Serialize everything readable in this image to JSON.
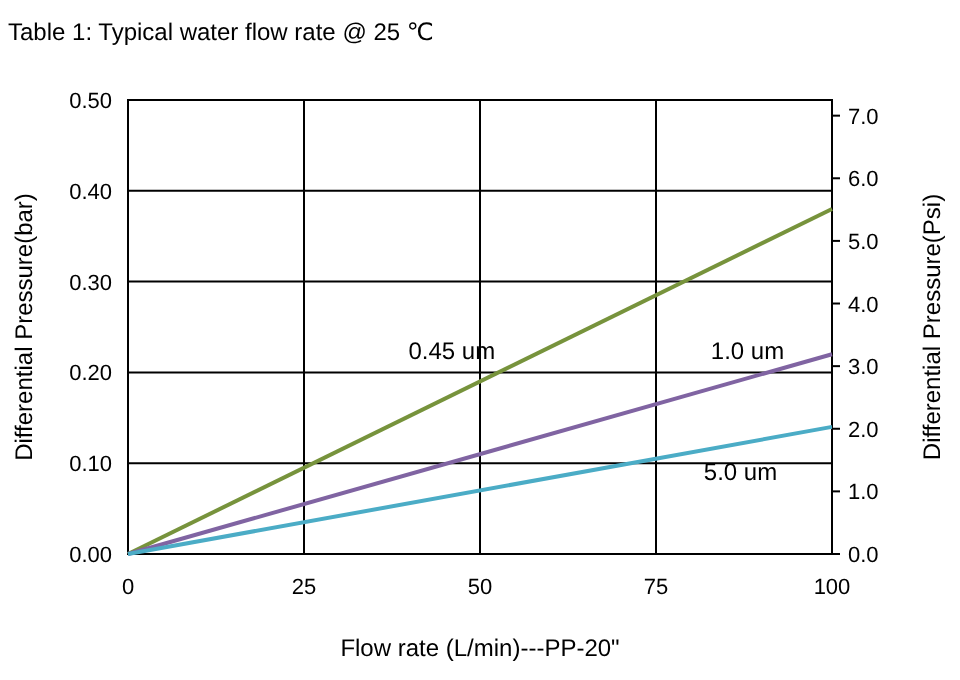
{
  "chart_data": {
    "type": "line",
    "title": "Table 1:  Typical water flow rate @ 25 ℃",
    "xlabel": "Flow rate (L/min)---PP-20\"",
    "ylabel": "Differential Pressure(bar)",
    "y2label": "Differential Pressure(Psi)",
    "x": [
      0,
      100
    ],
    "series": [
      {
        "name": "0.45 um",
        "color": "#77933c",
        "values": [
          0,
          0.38
        ]
      },
      {
        "name": "1.0 um",
        "color": "#8064a2",
        "values": [
          0,
          0.22
        ]
      },
      {
        "name": "5.0 um",
        "color": "#4bacc6",
        "values": [
          0,
          0.14
        ]
      }
    ],
    "xlim": [
      0,
      100
    ],
    "xticks": [
      0,
      25,
      50,
      75,
      100
    ],
    "ylim": [
      0,
      0.5
    ],
    "yticks": [
      {
        "value": 0,
        "label": "0.00"
      },
      {
        "value": 0.1,
        "label": "0.10"
      },
      {
        "value": 0.2,
        "label": "0.20"
      },
      {
        "value": 0.3,
        "label": "0.30"
      },
      {
        "value": 0.4,
        "label": "0.40"
      },
      {
        "value": 0.5,
        "label": "0.50"
      }
    ],
    "y2lim": [
      0,
      7.25
    ],
    "y2ticks": [
      {
        "value": 0,
        "label": "0.0"
      },
      {
        "value": 1,
        "label": "1.0"
      },
      {
        "value": 2,
        "label": "2.0"
      },
      {
        "value": 3,
        "label": "3.0"
      },
      {
        "value": 4,
        "label": "4.0"
      },
      {
        "value": 5,
        "label": "5.0"
      },
      {
        "value": 6,
        "label": "6.0"
      },
      {
        "value": 7,
        "label": "7.0"
      }
    ],
    "grid": true,
    "marker": "none",
    "line_style": "solid"
  }
}
